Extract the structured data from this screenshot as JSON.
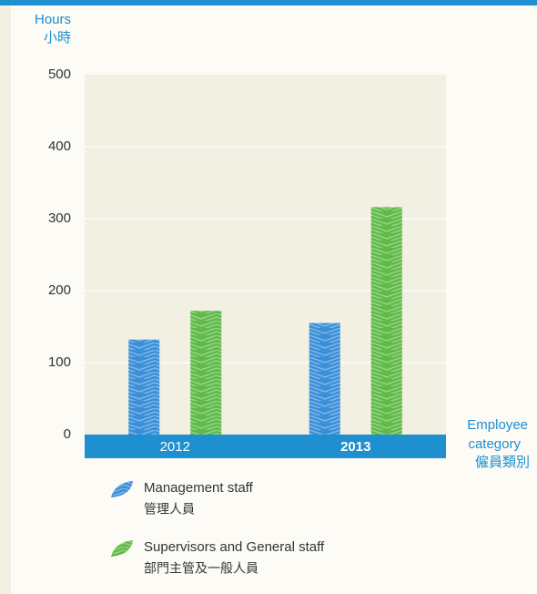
{
  "chart_data": {
    "type": "bar",
    "ylabel": "Hours",
    "ylabel_zh": "小時",
    "xlabel": "Employee",
    "xlabel_2": "category",
    "xlabel_zh": "僱員類別",
    "categories": [
      "2012",
      "2013"
    ],
    "series": [
      {
        "name": "Management staff",
        "name_zh": "管理人員",
        "color": "#3a8fd8",
        "values": [
          132,
          155
        ]
      },
      {
        "name": "Supervisors and General staff",
        "name_zh": "部門主管及一般人員",
        "color": "#5fba48",
        "values": [
          172,
          316
        ]
      }
    ],
    "ylim": [
      0,
      500
    ],
    "yticks": [
      0,
      100,
      200,
      300,
      400,
      500
    ],
    "grid": true
  }
}
